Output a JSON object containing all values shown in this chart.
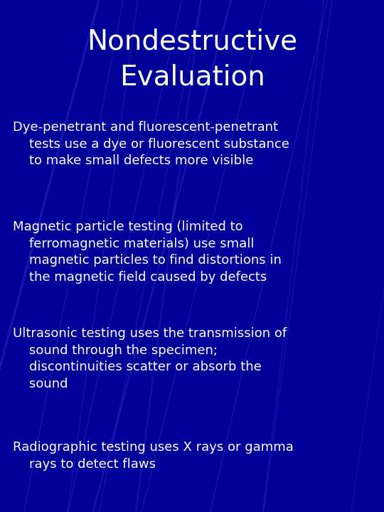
{
  "title_line1": "Nondestructive",
  "title_line2": "Evaluation",
  "background_color": "#000099",
  "title_color": "#FFFFFF",
  "text_color": "#FFFFFF",
  "title_fontsize": 28,
  "body_fontsize": 13,
  "bullets": [
    "Dye-penetrant and fluorescent-penetrant\n    tests use a dye or fluorescent substance\n    to make small defects more visible",
    "Magnetic particle testing (limited to\n    ferromagnetic materials) use small\n    magnetic particles to find distortions in\n    the magnetic field caused by defects",
    "Ultrasonic testing uses the transmission of\n    sound through the specimen;\n    discontinuities scatter or absorb the\n    sound",
    "Radiographic testing uses X rays or gamma\n    rays to detect flaws"
  ],
  "figsize": [
    5.4,
    7.2
  ],
  "dpi": 100
}
